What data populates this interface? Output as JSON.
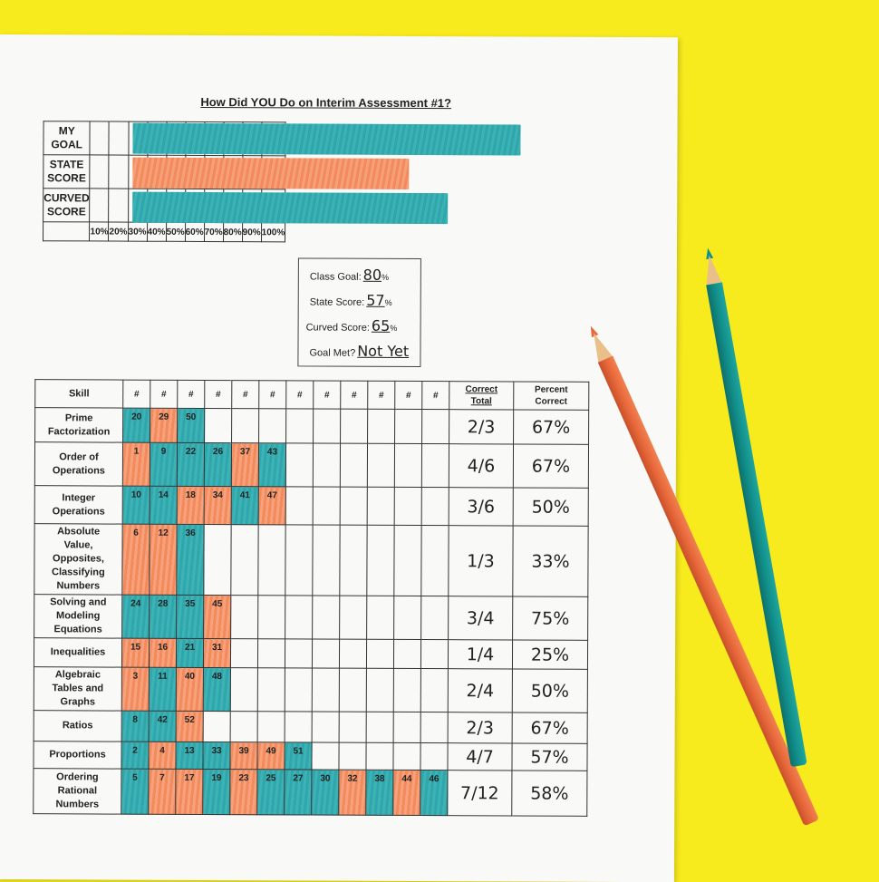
{
  "title": "How Did YOU Do on Interim Assessment #1?",
  "goal_grid": {
    "rows": [
      {
        "label_line1": "MY",
        "label_line2": "GOAL",
        "percent": 80,
        "color": "#2fa6ab"
      },
      {
        "label_line1": "STATE",
        "label_line2": "SCORE",
        "percent": 57,
        "color": "#f28a5b"
      },
      {
        "label_line1": "CURVED",
        "label_line2": "SCORE",
        "percent": 65,
        "color": "#2fa6ab"
      }
    ],
    "percent_labels": [
      "10%",
      "20%",
      "30%",
      "40%",
      "50%",
      "60%",
      "70%",
      "80%",
      "90%",
      "100%"
    ]
  },
  "scorebox": {
    "class_goal_label": "Class Goal:",
    "class_goal_value": "80",
    "state_score_label": "State Score:",
    "state_score_value": "57",
    "curved_score_label": "Curved Score:",
    "curved_score_value": "65",
    "percent_sign": "%",
    "goal_met_label": "Goal Met?",
    "goal_met_value": "Not Yet"
  },
  "skills_table": {
    "header_skill": "Skill",
    "header_hash": "#",
    "header_correct_1": "Correct",
    "header_correct_2": "Total",
    "header_percent_1": "Percent",
    "header_percent_2": "Correct",
    "rows": [
      {
        "skill": [
          "Prime",
          "Factorization"
        ],
        "items": [
          [
            "20",
            "t"
          ],
          [
            "29",
            "o"
          ],
          [
            "50",
            "t"
          ]
        ],
        "correct": "2/3",
        "percent": "67%"
      },
      {
        "skill": [
          "Order of",
          "Operations"
        ],
        "items": [
          [
            "1",
            "o"
          ],
          [
            "9",
            "t"
          ],
          [
            "22",
            "t"
          ],
          [
            "26",
            "t"
          ],
          [
            "37",
            "o"
          ],
          [
            "43",
            "t"
          ]
        ],
        "correct": "4/6",
        "percent": "67%"
      },
      {
        "skill": [
          "Integer",
          "Operations"
        ],
        "items": [
          [
            "10",
            "t"
          ],
          [
            "14",
            "t"
          ],
          [
            "18",
            "o"
          ],
          [
            "34",
            "o"
          ],
          [
            "41",
            "t"
          ],
          [
            "47",
            "o"
          ]
        ],
        "correct": "3/6",
        "percent": "50%"
      },
      {
        "skill": [
          "Absolute",
          "Value,",
          "Opposites,",
          "Classifying",
          "Numbers"
        ],
        "items": [
          [
            "6",
            "o"
          ],
          [
            "12",
            "o"
          ],
          [
            "36",
            "t"
          ]
        ],
        "correct": "1/3",
        "percent": "33%"
      },
      {
        "skill": [
          "Solving and",
          "Modeling",
          "Equations"
        ],
        "items": [
          [
            "24",
            "t"
          ],
          [
            "28",
            "t"
          ],
          [
            "35",
            "t"
          ],
          [
            "45",
            "o"
          ]
        ],
        "correct": "3/4",
        "percent": "75%"
      },
      {
        "skill": [
          "Inequalities"
        ],
        "items": [
          [
            "15",
            "o"
          ],
          [
            "16",
            "o"
          ],
          [
            "21",
            "t"
          ],
          [
            "31",
            "o"
          ]
        ],
        "correct": "1/4",
        "percent": "25%"
      },
      {
        "skill": [
          "Algebraic",
          "Tables and",
          "Graphs"
        ],
        "items": [
          [
            "3",
            "o"
          ],
          [
            "11",
            "t"
          ],
          [
            "40",
            "o"
          ],
          [
            "48",
            "t"
          ]
        ],
        "correct": "2/4",
        "percent": "50%"
      },
      {
        "skill": [
          "Ratios"
        ],
        "items": [
          [
            "8",
            "t"
          ],
          [
            "42",
            "t"
          ],
          [
            "52",
            "o"
          ]
        ],
        "correct": "2/3",
        "percent": "67%"
      },
      {
        "skill": [
          "Proportions"
        ],
        "items": [
          [
            "2",
            "t"
          ],
          [
            "4",
            "o"
          ],
          [
            "13",
            "t"
          ],
          [
            "33",
            "t"
          ],
          [
            "39",
            "o"
          ],
          [
            "49",
            "o"
          ],
          [
            "51",
            "t"
          ]
        ],
        "correct": "4/7",
        "percent": "57%"
      },
      {
        "skill": [
          "Ordering",
          "Rational",
          "Numbers"
        ],
        "items": [
          [
            "5",
            "t"
          ],
          [
            "7",
            "o"
          ],
          [
            "17",
            "o"
          ],
          [
            "19",
            "t"
          ],
          [
            "23",
            "o"
          ],
          [
            "25",
            "t"
          ],
          [
            "27",
            "t"
          ],
          [
            "30",
            "t"
          ],
          [
            "32",
            "o"
          ],
          [
            "38",
            "t"
          ],
          [
            "44",
            "o"
          ],
          [
            "46",
            "t"
          ]
        ],
        "correct": "7/12",
        "percent": "58%"
      }
    ]
  },
  "pencils": [
    {
      "name": "orange-pencil",
      "color": "#e8683a"
    },
    {
      "name": "teal-pencil",
      "color": "#128f8a"
    }
  ]
}
